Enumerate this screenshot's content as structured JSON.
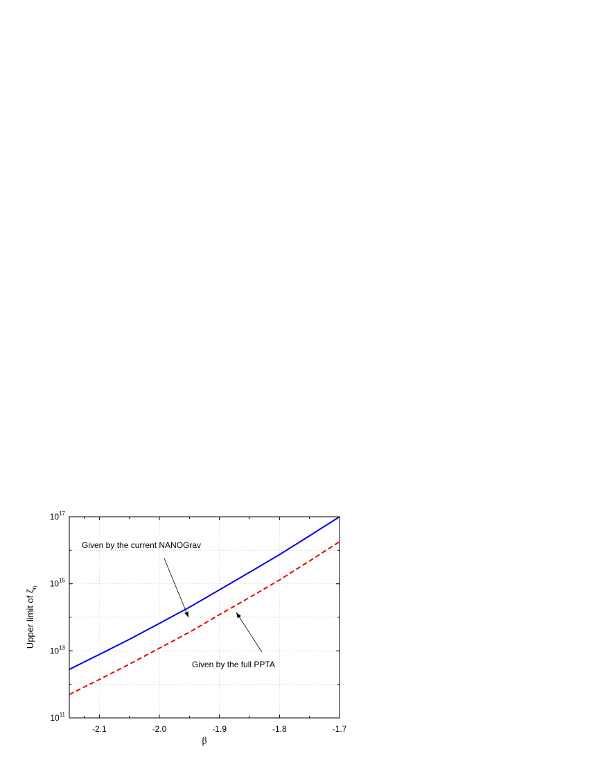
{
  "chart_data": {
    "type": "line",
    "x_label": "β",
    "y_label": "Upper limit of ζ",
    "y_label_sub": "η",
    "x": [
      -2.15,
      -2.1,
      -2.05,
      -2.0,
      -1.95,
      -1.9,
      -1.85,
      -1.8,
      -1.75,
      -1.7
    ],
    "series": [
      {
        "name": "Given by the current NANOGrav",
        "color": "#0000ee",
        "dash": false,
        "values": [
          2800000000000.0,
          7800000000000.0,
          22000000000000.0,
          66000000000000.0,
          200000000000000.0,
          660000000000000.0,
          2200000000000000.0,
          7400000000000000.0,
          2.7e+16,
          1e+17
        ]
      },
      {
        "name": "Given by the full PPTA",
        "color": "#ee0000",
        "dash": true,
        "values": [
          500000000000.0,
          1400000000000.0,
          4000000000000.0,
          12000000000000.0,
          36000000000000.0,
          120000000000000.0,
          390000000000000.0,
          1300000000000000.0,
          4800000000000000.0,
          1.8e+16
        ]
      }
    ],
    "xlim": [
      -2.15,
      -1.7
    ],
    "xticks": [
      -2.1,
      {
        "value": -2.0,
        "label": "-2.0"
      },
      -1.9,
      -1.8,
      -1.7
    ],
    "ylim": [
      100000000000.0,
      1e+17
    ],
    "yticks": [
      {
        "value": 100000000000.0,
        "label": "10",
        "sup": "11"
      },
      {
        "value": 10000000000000.0,
        "label": "10",
        "sup": "13"
      },
      {
        "value": 1000000000000000.0,
        "label": "10",
        "sup": "15"
      },
      {
        "value": 1e+17,
        "label": "10",
        "sup": "17"
      }
    ],
    "log_y": true,
    "grid": true
  }
}
